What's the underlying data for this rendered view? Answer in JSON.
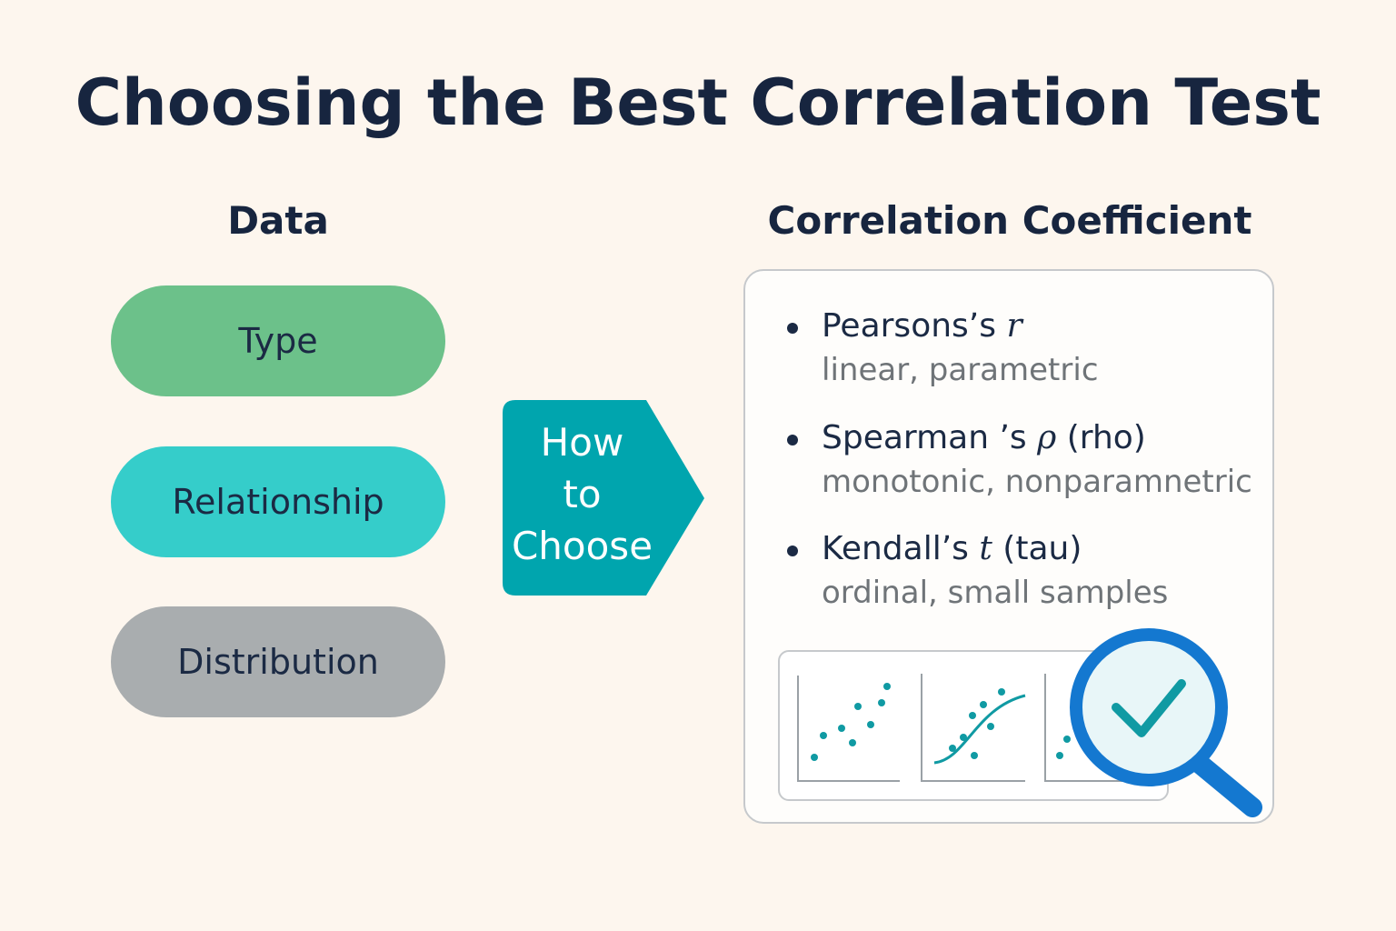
{
  "title": "Choosing the Best Correlation Test",
  "data_column": {
    "heading": "Data",
    "pills": [
      {
        "label": "Type",
        "color": "#6cc18a"
      },
      {
        "label": "Relationship",
        "color": "#35cdca"
      },
      {
        "label": "Distribution",
        "color": "#a9adaf"
      }
    ]
  },
  "decision": {
    "lines": [
      "How",
      "to",
      "Choose"
    ],
    "color": "#00a5ae"
  },
  "coefficient_column": {
    "heading": "Correlation Coefficient",
    "items": [
      {
        "name": "Pearsons’s",
        "symbol": "r",
        "suffix": "",
        "description": "linear, parametric"
      },
      {
        "name": "Spearman ’s",
        "symbol": "ρ",
        "suffix": "(rho)",
        "description": "monotonic, nonparamnetric"
      },
      {
        "name": "Kendall’s",
        "symbol": "t",
        "suffix": "(tau)",
        "description": "ordinal, small samples"
      }
    ]
  },
  "icons": {
    "magnifier": "magnifier-check-icon",
    "plot_linear": "scatter-linear-icon",
    "plot_monotonic": "scatter-curve-icon",
    "plot_ordinal": "scatter-ordinal-icon"
  },
  "colors": {
    "accent": "#00a5ae",
    "magnifier": "#1478d0",
    "check": "#109aa3"
  }
}
